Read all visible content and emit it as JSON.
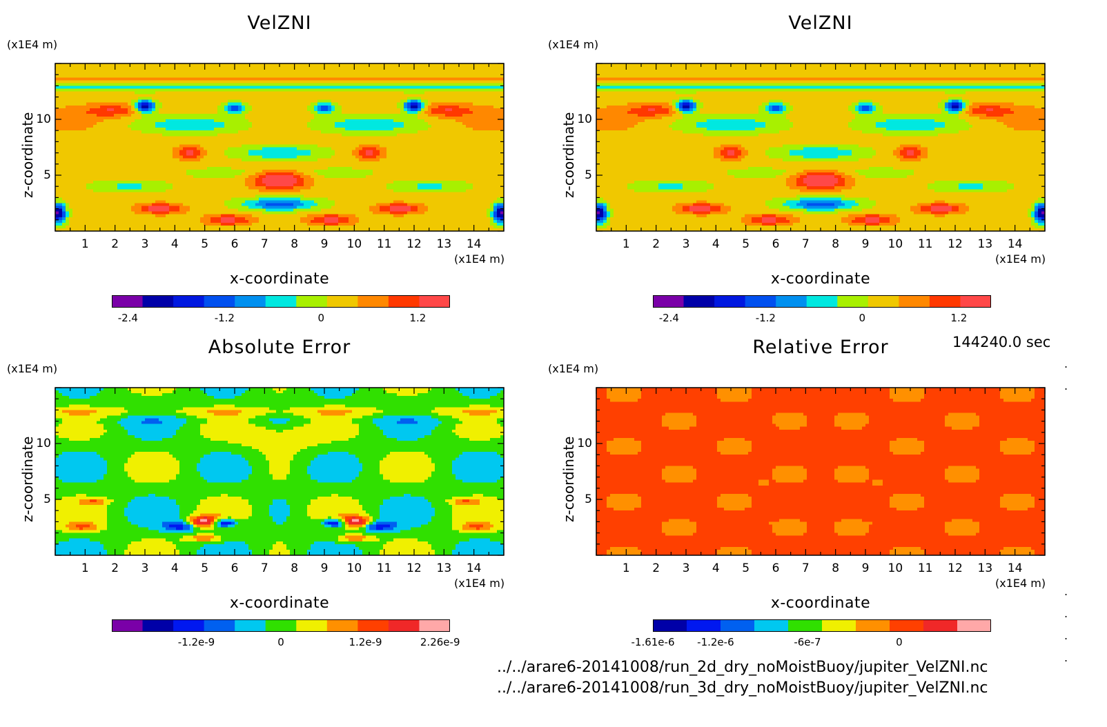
{
  "timestamp": "144240.0 sec",
  "files": [
    "../../arare6-20141008/run_2d_dry_noMoistBuoy/jupiter_VelZNI.nc",
    "../../arare6-20141008/run_3d_dry_noMoistBuoy/jupiter_VelZNI.nc"
  ],
  "chart_data": [
    {
      "type": "heatmap",
      "title": "VelZNI",
      "xlabel": "x-coordinate",
      "ylabel": "z-coordinate",
      "xunit": "(x1E4 m)",
      "yunit": "(x1E4 m)",
      "xticks": [
        "1",
        "2",
        "3",
        "4",
        "5",
        "6",
        "7",
        "8",
        "9",
        "10",
        "11",
        "12",
        "13",
        "14"
      ],
      "yticks": [
        "5",
        "10"
      ],
      "xlim": [
        0,
        15
      ],
      "ylim": [
        0,
        15
      ],
      "colorbar": {
        "colors": [
          "#7a00a8",
          "#0000a8",
          "#0018e0",
          "#0050f0",
          "#0090f0",
          "#00e8e0",
          "#a8f000",
          "#f0c800",
          "#ff8800",
          "#ff3800",
          "#ff4848"
        ],
        "ticks": [
          {
            "label": "-2.4",
            "value": -2.4
          },
          {
            "label": "-1.2",
            "value": -1.2
          },
          {
            "label": "0",
            "value": 0
          },
          {
            "label": "1.2",
            "value": 1.2
          }
        ],
        "range": [
          -2.6,
          1.6
        ]
      },
      "field": "velznl"
    },
    {
      "type": "heatmap",
      "title": "VelZNI",
      "xlabel": "x-coordinate",
      "ylabel": "z-coordinate",
      "xunit": "(x1E4 m)",
      "yunit": "(x1E4 m)",
      "xticks": [
        "1",
        "2",
        "3",
        "4",
        "5",
        "6",
        "7",
        "8",
        "9",
        "10",
        "11",
        "12",
        "13",
        "14"
      ],
      "yticks": [
        "5",
        "10"
      ],
      "xlim": [
        0,
        15
      ],
      "ylim": [
        0,
        15
      ],
      "colorbar": {
        "colors": [
          "#7a00a8",
          "#0000a8",
          "#0018e0",
          "#0050f0",
          "#0090f0",
          "#00e8e0",
          "#a8f000",
          "#f0c800",
          "#ff8800",
          "#ff3800",
          "#ff4848"
        ],
        "ticks": [
          {
            "label": "-2.4",
            "value": -2.4
          },
          {
            "label": "-1.2",
            "value": -1.2
          },
          {
            "label": "0",
            "value": 0
          },
          {
            "label": "1.2",
            "value": 1.2
          }
        ],
        "range": [
          -2.6,
          1.6
        ]
      },
      "field": "velznl"
    },
    {
      "type": "heatmap",
      "title": "Absolute Error",
      "xlabel": "x-coordinate",
      "ylabel": "z-coordinate",
      "xunit": "(x1E4 m)",
      "yunit": "(x1E4 m)",
      "xticks": [
        "1",
        "2",
        "3",
        "4",
        "5",
        "6",
        "7",
        "8",
        "9",
        "10",
        "11",
        "12",
        "13",
        "14"
      ],
      "yticks": [
        "5",
        "10"
      ],
      "xlim": [
        0,
        15
      ],
      "ylim": [
        0,
        15
      ],
      "colorbar": {
        "colors": [
          "#7a00a8",
          "#0000a8",
          "#0018f0",
          "#0060f0",
          "#00c8f0",
          "#30e000",
          "#f0f000",
          "#ff9000",
          "#ff4000",
          "#f02828",
          "#ffa8a8"
        ],
        "ticks": [
          {
            "label": "-1.2e-9",
            "value": -1.2e-09
          },
          {
            "label": "0",
            "value": 0
          },
          {
            "label": "1.2e-9",
            "value": 1.2e-09
          },
          {
            "label": "2.26e-9",
            "value": 2.26e-09
          }
        ],
        "range": [
          -2.4e-09,
          2.4e-09
        ]
      },
      "field": "abserr"
    },
    {
      "type": "heatmap",
      "title": "Relative Error",
      "xlabel": "x-coordinate",
      "ylabel": "z-coordinate",
      "xunit": "(x1E4 m)",
      "yunit": "(x1E4 m)",
      "xticks": [
        "1",
        "2",
        "3",
        "4",
        "5",
        "6",
        "7",
        "8",
        "9",
        "10",
        "11",
        "12",
        "13",
        "14"
      ],
      "yticks": [
        "5",
        "10"
      ],
      "xlim": [
        0,
        15
      ],
      "ylim": [
        0,
        15
      ],
      "colorbar": {
        "colors": [
          "#0000a8",
          "#0018f0",
          "#0060f0",
          "#00c8f0",
          "#30e000",
          "#f0f000",
          "#ff9000",
          "#ff4000",
          "#f02828",
          "#ffa8a8"
        ],
        "ticks": [
          {
            "label": "-1.61e-6",
            "value": -1.61e-06
          },
          {
            "label": "-1.2e-6",
            "value": -1.2e-06
          },
          {
            "label": "-6e-7",
            "value": -6e-07
          },
          {
            "label": "0",
            "value": 0
          }
        ],
        "range": [
          -1.61e-06,
          6e-07
        ]
      },
      "field": "relerr"
    }
  ]
}
